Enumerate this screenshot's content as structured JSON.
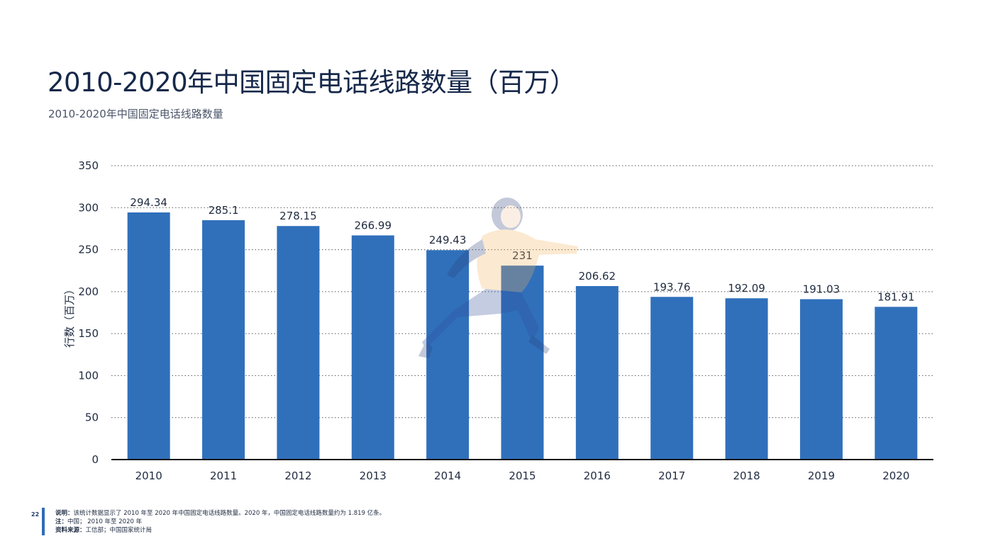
{
  "page": {
    "title": "2010-2020年中国固定电话线路数量（百万）",
    "subtitle": "2010-2020年中国固定电话线路数量",
    "page_number": "22"
  },
  "footer": {
    "description_label": "说明：",
    "description_text": "该统计数据显示了 2010 年至 2020 年中国固定电话线路数量。2020 年，中国固定电话线路数量约为 1.819 亿条。",
    "note_label": "注：",
    "note_text": "中国； 2010 年至 2020 年",
    "source_label": "资料来源：",
    "source_text": "工信部；中国国家统计局"
  },
  "colors": {
    "bar": "#3070bb",
    "title": "#16284a",
    "accent": "#2f6cb8"
  },
  "chart_data": {
    "type": "bar",
    "title": "",
    "xlabel": "",
    "ylabel": "行数（百万）",
    "categories": [
      "2010",
      "2011",
      "2012",
      "2013",
      "2014",
      "2015",
      "2016",
      "2017",
      "2018",
      "2019",
      "2020"
    ],
    "values": [
      294.34,
      285.1,
      278.15,
      266.99,
      249.43,
      231,
      206.62,
      193.76,
      192.09,
      191.03,
      181.91
    ],
    "data_labels": [
      "294.34",
      "285.1",
      "278.15",
      "266.99",
      "249.43",
      "231",
      "206.62",
      "193.76",
      "192.09",
      "191.03",
      "181.91"
    ],
    "ylim": [
      0,
      350
    ],
    "yticks": [
      0,
      50,
      100,
      150,
      200,
      250,
      300,
      350
    ],
    "grid": true,
    "grid_style": "dotted",
    "legend": "none"
  }
}
